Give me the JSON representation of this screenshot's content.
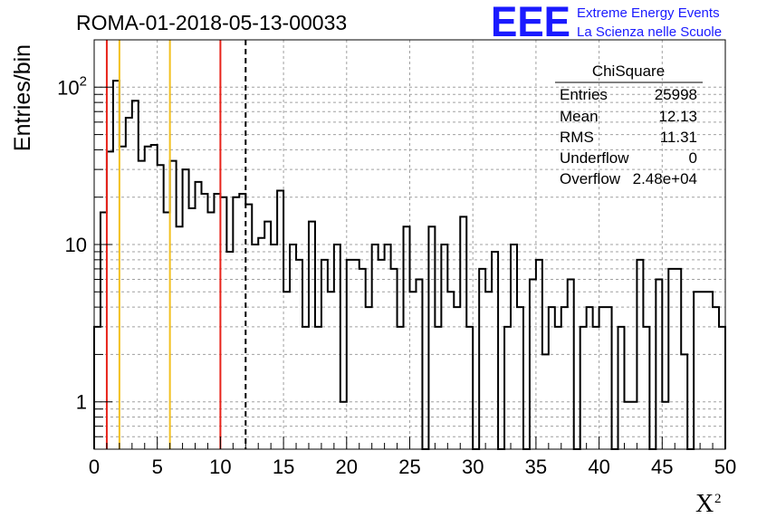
{
  "header": {
    "run_title": "ROMA-01-2018-05-13-00033",
    "logo_text": "EEE",
    "logo_line1": "Extreme Energy Events",
    "logo_line2": "La Scienza nelle Scuole"
  },
  "stats": {
    "title": "ChiSquare",
    "rows": [
      {
        "label": "Entries",
        "value": "25998"
      },
      {
        "label": "Mean",
        "value": "12.13"
      },
      {
        "label": "RMS",
        "value": "11.31"
      },
      {
        "label": "Underflow",
        "value": "0"
      },
      {
        "label": "Overflow",
        "value": "2.48e+04"
      }
    ]
  },
  "colors": {
    "histogram": "#000000",
    "red_line": "#e8231a",
    "yellow_line": "#f2c01f",
    "logo": "#1a1aff",
    "grid": "#a0a0a0"
  },
  "chart_data": {
    "type": "histogram",
    "title": "ROMA-01-2018-05-13-00033",
    "xlabel": "X",
    "xlabel_superscript": "2",
    "ylabel": "Entries/bin",
    "xlim": [
      0,
      50
    ],
    "ylim": [
      0.5,
      200
    ],
    "y_scale": "log",
    "grid": true,
    "bin_width": 0.5,
    "x_ticks": [
      "0",
      "5",
      "10",
      "15",
      "20",
      "25",
      "30",
      "35",
      "40",
      "45",
      "50"
    ],
    "y_ticks": [
      {
        "value": 1,
        "base": "1",
        "exp": ""
      },
      {
        "value": 10,
        "base": "10",
        "exp": ""
      },
      {
        "value": 100,
        "base": "10",
        "exp": "2"
      }
    ],
    "values": [
      3,
      16,
      39,
      110,
      42,
      64,
      82,
      34,
      42,
      43,
      32,
      16,
      34,
      13,
      30,
      17,
      25,
      21,
      16,
      21,
      20,
      9,
      20,
      21,
      18,
      10,
      11,
      14,
      10,
      22,
      5,
      10,
      8,
      3,
      14,
      3,
      8,
      5,
      10,
      1,
      8,
      8,
      7,
      4,
      10,
      8,
      10,
      7,
      3,
      13,
      5,
      6,
      0,
      13,
      3,
      10,
      5,
      4,
      15,
      3,
      0,
      7,
      5,
      9,
      0,
      3,
      10,
      4,
      0,
      6,
      8,
      2,
      4,
      3,
      4,
      6,
      0,
      3,
      4,
      3,
      4,
      4,
      0,
      3,
      1,
      1,
      8,
      3,
      0,
      6,
      1,
      7,
      7,
      2,
      0,
      5,
      5,
      5,
      4,
      3
    ],
    "vertical_lines": [
      {
        "x": 1,
        "color": "red"
      },
      {
        "x": 2,
        "color": "yellow"
      },
      {
        "x": 6,
        "color": "yellow"
      },
      {
        "x": 10,
        "color": "red"
      },
      {
        "x": 12,
        "color": "black-dashed"
      }
    ]
  }
}
